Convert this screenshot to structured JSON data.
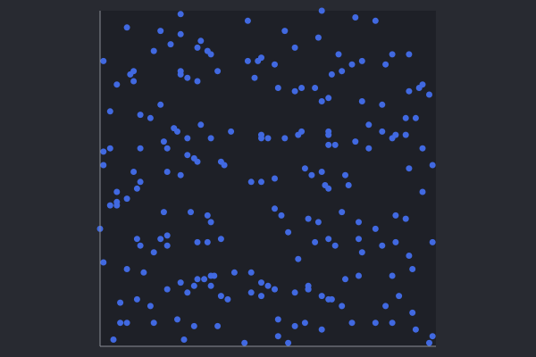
{
  "chart_data": {
    "type": "scatter",
    "title": "",
    "xlabel": "",
    "ylabel": "",
    "xlim": [
      0,
      1
    ],
    "ylim": [
      0,
      1
    ],
    "grid": false,
    "legend": "none",
    "colors": {
      "background": "#282a31",
      "plot_area": "#1e2027",
      "axis": "#8a8d95",
      "point": "#4169e1"
    },
    "points": [
      [
        0.08,
        0.95
      ],
      [
        0.18,
        0.94
      ],
      [
        0.24,
        0.99
      ],
      [
        0.44,
        0.97
      ],
      [
        0.55,
        0.94
      ],
      [
        0.66,
        1.0
      ],
      [
        0.76,
        0.98
      ],
      [
        0.82,
        0.97
      ],
      [
        0.21,
        0.9
      ],
      [
        0.16,
        0.88
      ],
      [
        0.3,
        0.91
      ],
      [
        0.32,
        0.88
      ],
      [
        0.33,
        0.87
      ],
      [
        0.24,
        0.93
      ],
      [
        0.29,
        0.89
      ],
      [
        0.44,
        0.85
      ],
      [
        0.47,
        0.85
      ],
      [
        0.48,
        0.86
      ],
      [
        0.52,
        0.84
      ],
      [
        0.58,
        0.89
      ],
      [
        0.65,
        0.92
      ],
      [
        0.71,
        0.87
      ],
      [
        0.75,
        0.84
      ],
      [
        0.78,
        0.85
      ],
      [
        0.85,
        0.84
      ],
      [
        0.87,
        0.87
      ],
      [
        0.92,
        0.87
      ],
      [
        0.01,
        0.85
      ],
      [
        0.1,
        0.79
      ],
      [
        0.09,
        0.81
      ],
      [
        0.1,
        0.82
      ],
      [
        0.05,
        0.78
      ],
      [
        0.24,
        0.82
      ],
      [
        0.24,
        0.81
      ],
      [
        0.26,
        0.8
      ],
      [
        0.29,
        0.79
      ],
      [
        0.35,
        0.82
      ],
      [
        0.46,
        0.8
      ],
      [
        0.53,
        0.77
      ],
      [
        0.58,
        0.76
      ],
      [
        0.6,
        0.77
      ],
      [
        0.64,
        0.77
      ],
      [
        0.66,
        0.73
      ],
      [
        0.69,
        0.81
      ],
      [
        0.72,
        0.82
      ],
      [
        0.68,
        0.74
      ],
      [
        0.78,
        0.73
      ],
      [
        0.84,
        0.72
      ],
      [
        0.92,
        0.76
      ],
      [
        0.95,
        0.77
      ],
      [
        0.96,
        0.78
      ],
      [
        0.98,
        0.75
      ],
      [
        0.03,
        0.7
      ],
      [
        0.12,
        0.69
      ],
      [
        0.15,
        0.68
      ],
      [
        0.18,
        0.72
      ],
      [
        0.22,
        0.65
      ],
      [
        0.23,
        0.64
      ],
      [
        0.26,
        0.62
      ],
      [
        0.3,
        0.66
      ],
      [
        0.33,
        0.62
      ],
      [
        0.39,
        0.64
      ],
      [
        0.48,
        0.63
      ],
      [
        0.55,
        0.62
      ],
      [
        0.59,
        0.63
      ],
      [
        0.6,
        0.64
      ],
      [
        0.68,
        0.63
      ],
      [
        0.68,
        0.64
      ],
      [
        0.8,
        0.66
      ],
      [
        0.84,
        0.64
      ],
      [
        0.88,
        0.63
      ],
      [
        0.91,
        0.68
      ],
      [
        0.94,
        0.68
      ],
      [
        0.01,
        0.58
      ],
      [
        0.03,
        0.59
      ],
      [
        0.12,
        0.59
      ],
      [
        0.2,
        0.59
      ],
      [
        0.19,
        0.61
      ],
      [
        0.26,
        0.57
      ],
      [
        0.28,
        0.56
      ],
      [
        0.29,
        0.55
      ],
      [
        0.36,
        0.55
      ],
      [
        0.48,
        0.62
      ],
      [
        0.5,
        0.62
      ],
      [
        0.68,
        0.6
      ],
      [
        0.7,
        0.6
      ],
      [
        0.76,
        0.61
      ],
      [
        0.8,
        0.59
      ],
      [
        0.87,
        0.62
      ],
      [
        0.91,
        0.63
      ],
      [
        0.96,
        0.59
      ],
      [
        0.01,
        0.54
      ],
      [
        0.1,
        0.52
      ],
      [
        0.12,
        0.49
      ],
      [
        0.2,
        0.52
      ],
      [
        0.24,
        0.51
      ],
      [
        0.37,
        0.54
      ],
      [
        0.45,
        0.49
      ],
      [
        0.48,
        0.49
      ],
      [
        0.52,
        0.5
      ],
      [
        0.61,
        0.53
      ],
      [
        0.63,
        0.51
      ],
      [
        0.66,
        0.52
      ],
      [
        0.67,
        0.48
      ],
      [
        0.68,
        0.47
      ],
      [
        0.73,
        0.51
      ],
      [
        0.74,
        0.48
      ],
      [
        0.92,
        0.53
      ],
      [
        0.96,
        0.46
      ],
      [
        0.99,
        0.54
      ],
      [
        0.05,
        0.46
      ],
      [
        0.11,
        0.47
      ],
      [
        0.08,
        0.44
      ],
      [
        0.05,
        0.43
      ],
      [
        0.05,
        0.42
      ],
      [
        0.03,
        0.42
      ],
      [
        0.19,
        0.4
      ],
      [
        0.27,
        0.4
      ],
      [
        0.32,
        0.39
      ],
      [
        0.33,
        0.37
      ],
      [
        0.52,
        0.41
      ],
      [
        0.54,
        0.39
      ],
      [
        0.62,
        0.38
      ],
      [
        0.65,
        0.37
      ],
      [
        0.72,
        0.4
      ],
      [
        0.77,
        0.37
      ],
      [
        0.82,
        0.35
      ],
      [
        0.88,
        0.39
      ],
      [
        0.91,
        0.38
      ],
      [
        0.0,
        0.35
      ],
      [
        0.11,
        0.32
      ],
      [
        0.12,
        0.3
      ],
      [
        0.18,
        0.32
      ],
      [
        0.2,
        0.33
      ],
      [
        0.29,
        0.31
      ],
      [
        0.32,
        0.31
      ],
      [
        0.36,
        0.32
      ],
      [
        0.56,
        0.34
      ],
      [
        0.64,
        0.31
      ],
      [
        0.68,
        0.32
      ],
      [
        0.7,
        0.3
      ],
      [
        0.77,
        0.32
      ],
      [
        0.78,
        0.28
      ],
      [
        0.84,
        0.3
      ],
      [
        0.88,
        0.31
      ],
      [
        0.92,
        0.27
      ],
      [
        0.99,
        0.31
      ],
      [
        0.01,
        0.25
      ],
      [
        0.08,
        0.23
      ],
      [
        0.13,
        0.22
      ],
      [
        0.16,
        0.28
      ],
      [
        0.2,
        0.3
      ],
      [
        0.24,
        0.19
      ],
      [
        0.29,
        0.2
      ],
      [
        0.33,
        0.21
      ],
      [
        0.34,
        0.21
      ],
      [
        0.4,
        0.22
      ],
      [
        0.45,
        0.22
      ],
      [
        0.48,
        0.19
      ],
      [
        0.5,
        0.18
      ],
      [
        0.59,
        0.26
      ],
      [
        0.62,
        0.18
      ],
      [
        0.62,
        0.17
      ],
      [
        0.66,
        0.15
      ],
      [
        0.69,
        0.14
      ],
      [
        0.73,
        0.2
      ],
      [
        0.77,
        0.21
      ],
      [
        0.87,
        0.21
      ],
      [
        0.93,
        0.23
      ],
      [
        0.06,
        0.13
      ],
      [
        0.11,
        0.14
      ],
      [
        0.15,
        0.12
      ],
      [
        0.2,
        0.17
      ],
      [
        0.26,
        0.16
      ],
      [
        0.28,
        0.18
      ],
      [
        0.31,
        0.2
      ],
      [
        0.33,
        0.18
      ],
      [
        0.36,
        0.15
      ],
      [
        0.38,
        0.14
      ],
      [
        0.45,
        0.16
      ],
      [
        0.48,
        0.15
      ],
      [
        0.52,
        0.17
      ],
      [
        0.58,
        0.16
      ],
      [
        0.62,
        0.17
      ],
      [
        0.68,
        0.14
      ],
      [
        0.72,
        0.12
      ],
      [
        0.85,
        0.12
      ],
      [
        0.89,
        0.15
      ],
      [
        0.93,
        0.1
      ],
      [
        0.06,
        0.07
      ],
      [
        0.08,
        0.07
      ],
      [
        0.16,
        0.07
      ],
      [
        0.23,
        0.08
      ],
      [
        0.28,
        0.06
      ],
      [
        0.35,
        0.06
      ],
      [
        0.53,
        0.08
      ],
      [
        0.58,
        0.06
      ],
      [
        0.61,
        0.07
      ],
      [
        0.75,
        0.07
      ],
      [
        0.82,
        0.07
      ],
      [
        0.87,
        0.07
      ],
      [
        0.94,
        0.05
      ],
      [
        0.04,
        0.02
      ],
      [
        0.25,
        0.02
      ],
      [
        0.43,
        0.01
      ],
      [
        0.53,
        0.03
      ],
      [
        0.56,
        0.01
      ],
      [
        0.66,
        0.05
      ],
      [
        0.99,
        0.03
      ],
      [
        0.98,
        0.01
      ]
    ]
  }
}
